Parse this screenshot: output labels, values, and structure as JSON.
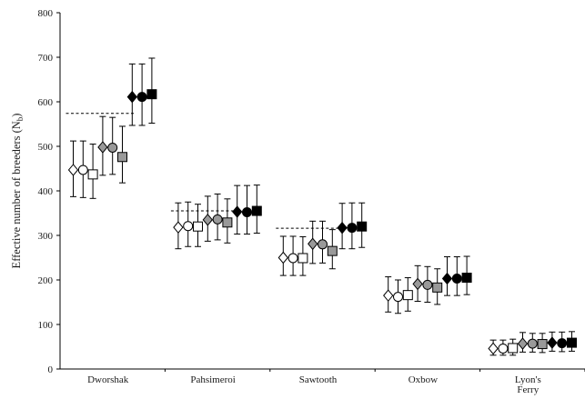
{
  "chart_data": {
    "type": "scatter",
    "title": "",
    "xlabel": "",
    "ylabel_main": "Effective number of breeders (N",
    "ylabel_sub": "b",
    "ylabel_close": ")",
    "ylim": [
      0,
      800
    ],
    "yticks": [
      "0",
      "100",
      "200",
      "300",
      "400",
      "500",
      "600",
      "700",
      "800"
    ],
    "grid": false,
    "categories": [
      {
        "label": "Dworshak",
        "label2": ""
      },
      {
        "label": "Pahsimeroi",
        "label2": ""
      },
      {
        "label": "Sawtooth",
        "label2": ""
      },
      {
        "label": "Oxbow",
        "label2": ""
      },
      {
        "label": "Lyon's",
        "label2": "Ferry"
      }
    ],
    "marker_styles": [
      {
        "shape": "diamond",
        "fill": "#ffffff"
      },
      {
        "shape": "circle",
        "fill": "#ffffff"
      },
      {
        "shape": "square",
        "fill": "#ffffff"
      },
      {
        "shape": "diamond",
        "fill": "#999999"
      },
      {
        "shape": "circle",
        "fill": "#999999"
      },
      {
        "shape": "square",
        "fill": "#999999"
      },
      {
        "shape": "diamond",
        "fill": "#000000"
      },
      {
        "shape": "circle",
        "fill": "#000000"
      },
      {
        "shape": "square",
        "fill": "#000000"
      }
    ],
    "groups": [
      {
        "category": "Dworshak",
        "reference": 574,
        "points": [
          {
            "value": 447,
            "low": 387,
            "high": 512
          },
          {
            "value": 447,
            "low": 385,
            "high": 512
          },
          {
            "value": 437,
            "low": 383,
            "high": 505
          },
          {
            "value": 498,
            "low": 435,
            "high": 567
          },
          {
            "value": 497,
            "low": 437,
            "high": 565
          },
          {
            "value": 476,
            "low": 418,
            "high": 545
          },
          {
            "value": 611,
            "low": 547,
            "high": 685
          },
          {
            "value": 611,
            "low": 547,
            "high": 685
          },
          {
            "value": 617,
            "low": 552,
            "high": 698
          }
        ]
      },
      {
        "category": "Pahsimeroi",
        "reference": 355,
        "points": [
          {
            "value": 318,
            "low": 270,
            "high": 373
          },
          {
            "value": 321,
            "low": 275,
            "high": 375
          },
          {
            "value": 320,
            "low": 275,
            "high": 370
          },
          {
            "value": 335,
            "low": 287,
            "high": 388
          },
          {
            "value": 336,
            "low": 290,
            "high": 393
          },
          {
            "value": 329,
            "low": 283,
            "high": 382
          },
          {
            "value": 353,
            "low": 303,
            "high": 412
          },
          {
            "value": 352,
            "low": 303,
            "high": 412
          },
          {
            "value": 355,
            "low": 305,
            "high": 413
          }
        ]
      },
      {
        "category": "Sawtooth",
        "reference": 316,
        "points": [
          {
            "value": 250,
            "low": 210,
            "high": 298
          },
          {
            "value": 249,
            "low": 210,
            "high": 298
          },
          {
            "value": 249,
            "low": 210,
            "high": 297
          },
          {
            "value": 281,
            "low": 237,
            "high": 332
          },
          {
            "value": 280,
            "low": 238,
            "high": 332
          },
          {
            "value": 265,
            "low": 225,
            "high": 313
          },
          {
            "value": 317,
            "low": 270,
            "high": 372
          },
          {
            "value": 317,
            "low": 270,
            "high": 373
          },
          {
            "value": 320,
            "low": 273,
            "high": 373
          }
        ]
      },
      {
        "category": "Oxbow",
        "reference": null,
        "points": [
          {
            "value": 165,
            "low": 128,
            "high": 207
          },
          {
            "value": 162,
            "low": 125,
            "high": 200
          },
          {
            "value": 166,
            "low": 130,
            "high": 205
          },
          {
            "value": 191,
            "low": 152,
            "high": 232
          },
          {
            "value": 189,
            "low": 150,
            "high": 230
          },
          {
            "value": 183,
            "low": 145,
            "high": 225
          },
          {
            "value": 203,
            "low": 165,
            "high": 252
          },
          {
            "value": 203,
            "low": 165,
            "high": 252
          },
          {
            "value": 205,
            "low": 167,
            "high": 253
          }
        ]
      },
      {
        "category": "Lyon's Ferry",
        "reference": null,
        "points": [
          {
            "value": 46,
            "low": 31,
            "high": 65
          },
          {
            "value": 46,
            "low": 31,
            "high": 65
          },
          {
            "value": 47,
            "low": 31,
            "high": 67
          },
          {
            "value": 57,
            "low": 38,
            "high": 82
          },
          {
            "value": 57,
            "low": 38,
            "high": 80
          },
          {
            "value": 56,
            "low": 37,
            "high": 80
          },
          {
            "value": 59,
            "low": 40,
            "high": 83
          },
          {
            "value": 58,
            "low": 39,
            "high": 83
          },
          {
            "value": 59,
            "low": 40,
            "high": 84
          }
        ]
      }
    ]
  }
}
